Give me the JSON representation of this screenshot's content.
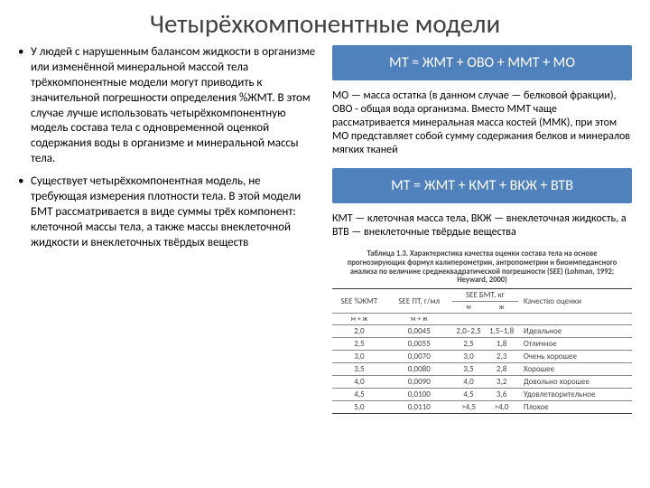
{
  "title": "Четырёхкомпонентные модели",
  "bullets": [
    "У людей с нарушенным балансом жидкости в организме или изменённой минеральной массой тела трёхкомпонентные модели могут приводить к значительной погрешности определения %ЖМТ. В этом случае лучше использовать четырёхкомпонентную модель состава тела с одновременной оценкой содержания воды в организме и минеральной массы тела.",
    "Существует четырёхкомпонентная модель, не требующая измерения плотности тела. В этой модели БМТ рассматривается в виде суммы трёх компонент: клеточной массы тела, а также массы внеклеточной жидкости и внеклеточных твёрдых веществ"
  ],
  "formula1": "МТ = ЖМТ + ОВО + ММТ + МО",
  "desc1": "МО — масса остатка (в данном случае — белковой фракции), ОВО - общая вода организма. Вместо ММТ чаще рассматривается минеральная масса костей (ММК), при этом МО представляет собой сумму содержания белков и минералов мягких тканей",
  "formula2": "МТ = ЖМТ + КМТ + ВКЖ + ВТВ",
  "desc2": "КМТ — клеточная масса тела, ВКЖ — внеклеточная жидкость, а ВТВ — внеклеточные твёрдые вещества",
  "tbl": {
    "caption": "Таблица 1.3. Характеристика качества оценки состава тела на основе прогнозирующих формул калиперометрии, антропометрии и биоимпедансного анализа по величине среднеквадратической погрешности (SEE) (Lohman, 1992; Heyward, 2000)",
    "head1": [
      "SEE %ЖМТ",
      "SEE ПТ, г/мл",
      "SEE БМТ, кг",
      "Качество оценки"
    ],
    "head2": [
      "м + ж",
      "м + ж",
      "м",
      "ж",
      ""
    ],
    "rows": [
      [
        "2,0",
        "0,0045",
        "2,0–2,5",
        "1,5–1,8",
        "Идеальное"
      ],
      [
        "2,5",
        "0,0055",
        "2,5",
        "1,8",
        "Отличное"
      ],
      [
        "3,0",
        "0,0070",
        "3,0",
        "2,3",
        "Очень хорошее"
      ],
      [
        "3,5",
        "0,0080",
        "3,5",
        "2,8",
        "Хорошее"
      ],
      [
        "4,0",
        "0,0090",
        "4,0",
        "3,2",
        "Довольно хорошее"
      ],
      [
        "4,5",
        "0,0100",
        "4,5",
        "3,6",
        "Удовлетворительное"
      ],
      [
        "5,0",
        "0,0110",
        ">4,5",
        ">4,0",
        "Плохое"
      ]
    ]
  }
}
